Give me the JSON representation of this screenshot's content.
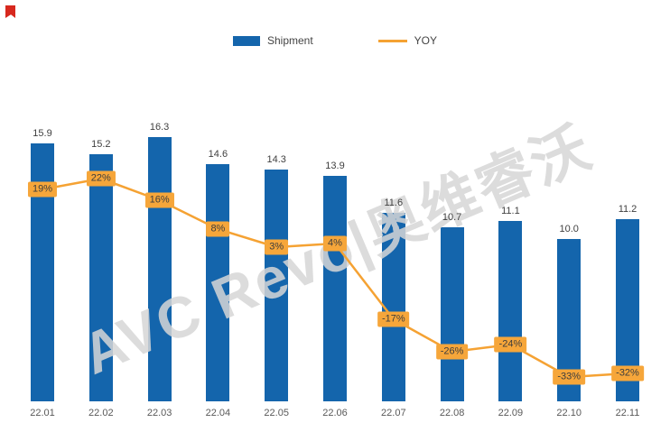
{
  "legend": {
    "shipment": "Shipment",
    "yoy": "YOY"
  },
  "watermark": "AVC Revo|奥维睿沃",
  "colors": {
    "bar": "#1465ac",
    "line": "#f5a233",
    "label_box": "#f6a63a",
    "label_text": "#3d3d3d",
    "axis_text": "#595959",
    "watermark": "#d6d6d6",
    "corner_mark": "#d7281e"
  },
  "chart_data": {
    "type": "bar",
    "title": "",
    "xlabel": "",
    "ylabel": "",
    "grid": false,
    "legend_position": "top",
    "categories": [
      "22.01",
      "22.02",
      "22.03",
      "22.04",
      "22.05",
      "22.06",
      "22.07",
      "22.08",
      "22.09",
      "22.10",
      "22.11"
    ],
    "series": [
      {
        "name": "Shipment",
        "type": "bar",
        "values": [
          15.9,
          15.2,
          16.3,
          14.6,
          14.3,
          13.9,
          11.6,
          10.7,
          11.1,
          10.0,
          11.2
        ],
        "labels": [
          "15.9",
          "15.2",
          "16.3",
          "14.6",
          "14.3",
          "13.9",
          "11.6",
          "10.7",
          "11.1",
          "10.0",
          "11.2"
        ]
      },
      {
        "name": "YOY",
        "type": "line",
        "values": [
          19,
          22,
          16,
          8,
          3,
          4,
          -17,
          -26,
          -24,
          -33,
          -32
        ],
        "labels": [
          "19%",
          "22%",
          "16%",
          "8%",
          "3%",
          "4%",
          "-17%",
          "-26%",
          "-24%",
          "-33%",
          "-32%"
        ]
      }
    ]
  }
}
